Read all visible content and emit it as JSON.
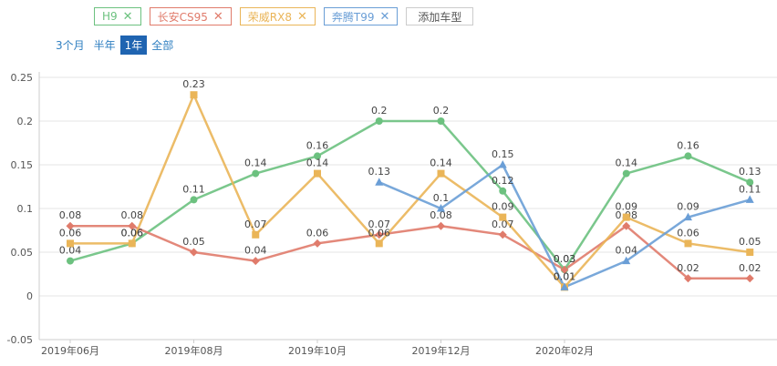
{
  "tags": [
    {
      "label": "H9",
      "color": "#6cc17f"
    },
    {
      "label": "长安CS95",
      "color": "#e07b6b"
    },
    {
      "label": "荣威RX8",
      "color": "#eab558"
    },
    {
      "label": "奔腾T99",
      "color": "#6a9ed6"
    }
  ],
  "add_label": "添加车型",
  "close_glyph": "✕",
  "ranges": [
    {
      "label": "3个月",
      "active": false
    },
    {
      "label": "半年",
      "active": false
    },
    {
      "label": "1年",
      "active": true
    },
    {
      "label": "全部",
      "active": false
    }
  ],
  "chart_data": {
    "type": "line",
    "ylim": [
      -0.05,
      0.25
    ],
    "yticks": [
      "-0.05",
      "0",
      "0.05",
      "0.1",
      "0.15",
      "0.2",
      "0.25"
    ],
    "ytick_values": [
      -0.05,
      0,
      0.05,
      0.1,
      0.15,
      0.2,
      0.25
    ],
    "x_points": 12,
    "xtick_labels": [
      {
        "index": 0,
        "label": "2019年06月"
      },
      {
        "index": 2,
        "label": "2019年08月"
      },
      {
        "index": 4,
        "label": "2019年10月"
      },
      {
        "index": 6,
        "label": "2019年12月"
      },
      {
        "index": 8,
        "label": "2020年02月"
      }
    ],
    "series": [
      {
        "name": "H9",
        "color": "#6cc17f",
        "marker": "circle",
        "values": [
          0.04,
          0.06,
          0.11,
          0.14,
          0.16,
          0.2,
          0.2,
          0.12,
          0.03,
          0.14,
          0.16,
          0.13
        ]
      },
      {
        "name": "长安CS95",
        "color": "#e07b6b",
        "marker": "diamond",
        "values": [
          0.08,
          0.08,
          0.05,
          0.04,
          0.06,
          0.07,
          0.08,
          0.07,
          0.03,
          0.08,
          0.02,
          0.02
        ]
      },
      {
        "name": "荣威RX8",
        "color": "#eab558",
        "marker": "square",
        "values": [
          0.06,
          0.06,
          0.23,
          0.07,
          0.14,
          0.06,
          0.14,
          0.09,
          0.01,
          0.09,
          0.06,
          0.05
        ]
      },
      {
        "name": "奔腾T99",
        "color": "#6a9ed6",
        "marker": "triangle",
        "values": [
          null,
          null,
          null,
          null,
          null,
          0.13,
          0.1,
          0.15,
          0.01,
          0.04,
          0.09,
          0.11
        ]
      }
    ]
  }
}
